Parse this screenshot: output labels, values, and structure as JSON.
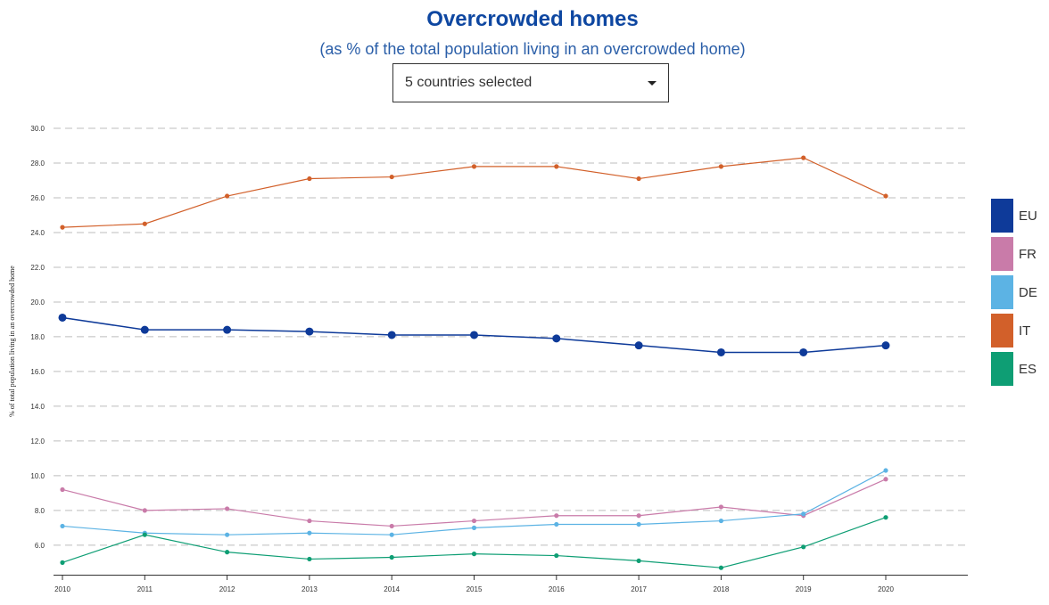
{
  "header": {
    "title": "Overcrowded homes",
    "subtitle": "(as % of the total population living in an overcrowded home)"
  },
  "selector": {
    "value": "5 countries selected"
  },
  "chart_data": {
    "type": "line",
    "title": "Overcrowded homes",
    "subtitle": "(as % of the total population living in an overcrowded home)",
    "ylabel": "% of total population living in an overcrowded home",
    "xlabel": "",
    "x": [
      "2010",
      "2011",
      "2012",
      "2013",
      "2014",
      "2015",
      "2016",
      "2017",
      "2018",
      "2019",
      "2020"
    ],
    "yticks": [
      "6.0",
      "8.0",
      "10.0",
      "12.0",
      "14.0",
      "16.0",
      "18.0",
      "20.0",
      "22.0",
      "24.0",
      "26.0",
      "28.0",
      "30.0"
    ],
    "ylim": [
      4.3,
      30
    ],
    "grid": true,
    "legend_position": "right",
    "series": [
      {
        "name": "EU",
        "color": "#0e3a99",
        "marker": "large",
        "values": [
          19.1,
          18.4,
          18.4,
          18.3,
          18.1,
          18.1,
          17.9,
          17.5,
          17.1,
          17.1,
          17.5
        ]
      },
      {
        "name": "FR",
        "color": "#c97ba9",
        "marker": "small",
        "values": [
          9.2,
          8.0,
          8.1,
          7.4,
          7.1,
          7.4,
          7.7,
          7.7,
          8.2,
          7.7,
          9.8
        ]
      },
      {
        "name": "DE",
        "color": "#5cb3e4",
        "marker": "small",
        "values": [
          7.1,
          6.7,
          6.6,
          6.7,
          6.6,
          7.0,
          7.2,
          7.2,
          7.4,
          7.8,
          10.3
        ]
      },
      {
        "name": "IT",
        "color": "#d2602a",
        "marker": "small",
        "values": [
          24.3,
          24.5,
          26.1,
          27.1,
          27.2,
          27.8,
          27.8,
          27.1,
          27.8,
          28.3,
          26.1
        ]
      },
      {
        "name": "ES",
        "color": "#0e9e74",
        "marker": "small",
        "values": [
          5.0,
          6.6,
          5.6,
          5.2,
          5.3,
          5.5,
          5.4,
          5.1,
          4.7,
          5.9,
          7.6
        ]
      }
    ]
  }
}
